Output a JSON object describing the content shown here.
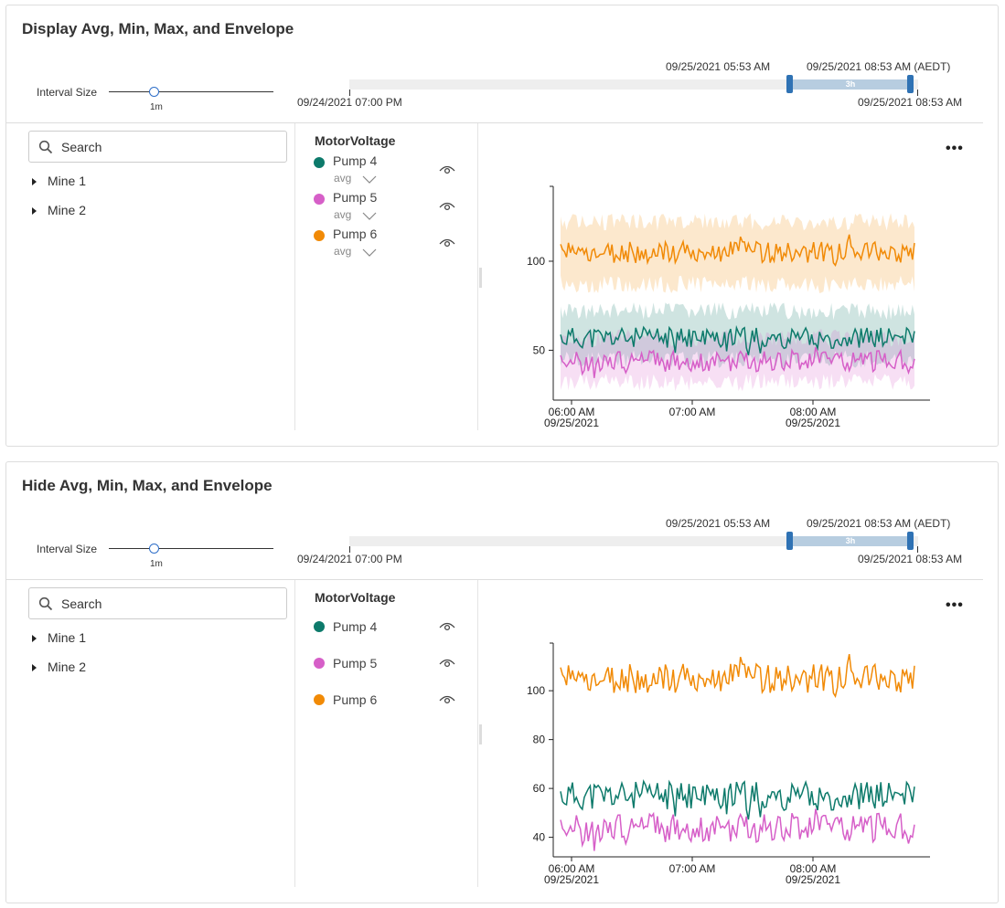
{
  "panels": [
    {
      "title": "Display Avg, Min, Max, and Envelope",
      "interval": {
        "label": "Interval Size",
        "value": "1m"
      },
      "timeline": {
        "sel_start": "09/25/2021 05:53 AM",
        "sel_end": "09/25/2021 08:53 AM (AEDT)",
        "range_start": "09/24/2021 07:00 PM",
        "range_end": "09/25/2021 08:53 AM",
        "sel_label": "3h"
      },
      "search": {
        "placeholder": "Search"
      },
      "tree": [
        {
          "label": "Mine 1"
        },
        {
          "label": "Mine 2"
        }
      ],
      "legend": {
        "title": "MotorVoltage",
        "items": [
          {
            "name": "Pump 4",
            "color": "#0d7a6b",
            "agg": "avg"
          },
          {
            "name": "Pump 5",
            "color": "#d65fc8",
            "agg": "avg"
          },
          {
            "name": "Pump 6",
            "color": "#f18a06",
            "agg": "avg"
          }
        ]
      },
      "more": "•••"
    },
    {
      "title": "Hide Avg, Min, Max, and Envelope",
      "interval": {
        "label": "Interval Size",
        "value": "1m"
      },
      "timeline": {
        "sel_start": "09/25/2021 05:53 AM",
        "sel_end": "09/25/2021 08:53 AM (AEDT)",
        "range_start": "09/24/2021 07:00 PM",
        "range_end": "09/25/2021 08:53 AM",
        "sel_label": "3h"
      },
      "search": {
        "placeholder": "Search"
      },
      "tree": [
        {
          "label": "Mine 1"
        },
        {
          "label": "Mine 2"
        }
      ],
      "legend": {
        "title": "MotorVoltage",
        "items": [
          {
            "name": "Pump 4",
            "color": "#0d7a6b"
          },
          {
            "name": "Pump 5",
            "color": "#d65fc8"
          },
          {
            "name": "Pump 6",
            "color": "#f18a06"
          }
        ]
      },
      "more": "•••"
    }
  ],
  "chart_data": [
    {
      "type": "line",
      "envelope": true,
      "x_ticks": [
        {
          "time": "06:00 AM",
          "date": "09/25/2021"
        },
        {
          "time": "07:00 AM",
          "date": ""
        },
        {
          "time": "08:00 AM",
          "date": "09/25/2021"
        }
      ],
      "x_range": [
        "05:53 AM",
        "08:53 AM"
      ],
      "ylim": [
        22,
        140
      ],
      "yticks": [
        50,
        100
      ],
      "series": [
        {
          "name": "Pump 4",
          "color": "#0d7a6b",
          "mean": 57,
          "min": 40,
          "max": 77
        },
        {
          "name": "Pump 5",
          "color": "#d65fc8",
          "mean": 44,
          "min": 27,
          "max": 62
        },
        {
          "name": "Pump 6",
          "color": "#f18a06",
          "mean": 105,
          "min": 82,
          "max": 127
        }
      ]
    },
    {
      "type": "line",
      "envelope": false,
      "x_ticks": [
        {
          "time": "06:00 AM",
          "date": "09/25/2021"
        },
        {
          "time": "07:00 AM",
          "date": ""
        },
        {
          "time": "08:00 AM",
          "date": "09/25/2021"
        }
      ],
      "x_range": [
        "05:53 AM",
        "08:53 AM"
      ],
      "ylim": [
        32,
        118
      ],
      "yticks": [
        40,
        60,
        80,
        100
      ],
      "series": [
        {
          "name": "Pump 4",
          "color": "#0d7a6b",
          "mean": 57
        },
        {
          "name": "Pump 5",
          "color": "#d65fc8",
          "mean": 44
        },
        {
          "name": "Pump 6",
          "color": "#f18a06",
          "mean": 105
        }
      ]
    }
  ]
}
